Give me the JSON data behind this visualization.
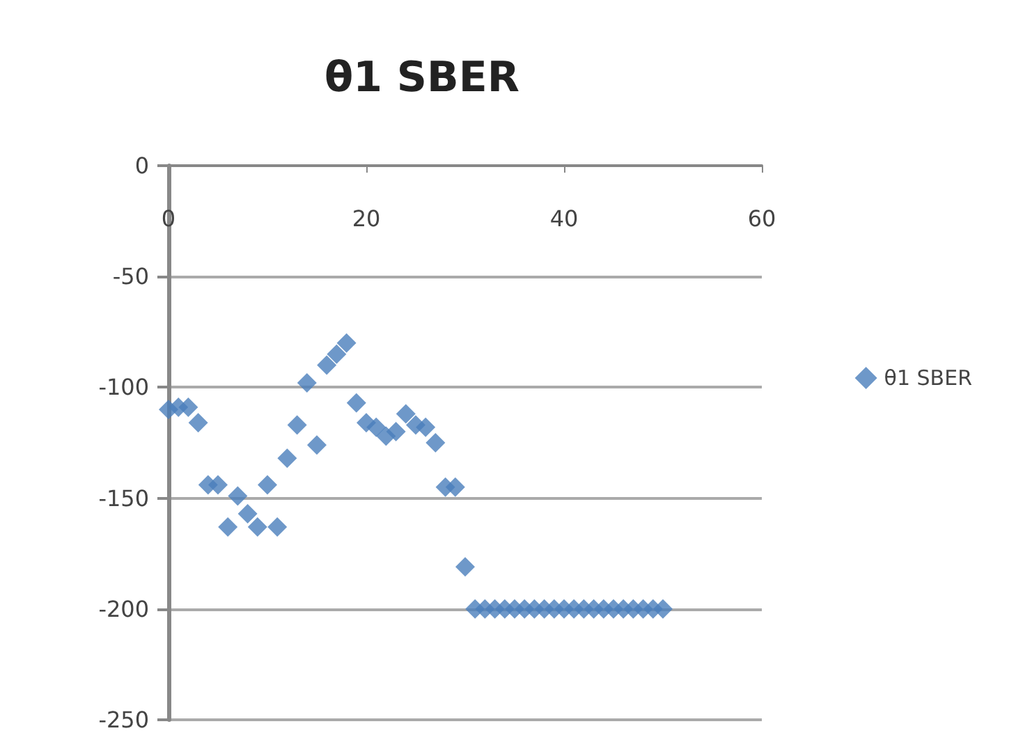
{
  "chart_data": {
    "type": "scatter",
    "title": "θ1 SBER",
    "x": [
      0,
      1,
      2,
      3,
      4,
      5,
      6,
      7,
      8,
      9,
      10,
      11,
      12,
      13,
      14,
      15,
      16,
      17,
      18,
      19,
      20,
      21,
      22,
      23,
      24,
      25,
      26,
      27,
      28,
      29,
      30,
      31,
      32,
      33,
      34,
      35,
      36,
      37,
      38,
      39,
      40,
      41,
      42,
      43,
      44,
      45,
      46,
      47,
      48,
      49,
      50
    ],
    "series": [
      {
        "name": "θ1 SBER",
        "color": "#4a7ebb",
        "values": [
          -110,
          -109,
          -109,
          -116,
          -144,
          -144,
          -163,
          -149,
          -157,
          -163,
          -144,
          -163,
          -132,
          -117,
          -98,
          -126,
          -90,
          -85,
          -80,
          -107,
          -116,
          -118,
          -122,
          -120,
          -112,
          -117,
          -118,
          -125,
          -145,
          -145,
          -181,
          -200,
          -200,
          -200,
          -200,
          -200,
          -200,
          -200,
          -200,
          -200,
          -200,
          -200,
          -200,
          -200,
          -200,
          -200,
          -200,
          -200,
          -200,
          -200,
          -200
        ]
      }
    ],
    "xlim": [
      0,
      60
    ],
    "xticks": [
      0,
      20,
      40,
      60
    ],
    "ylim": [
      -250,
      0
    ],
    "yticks": [
      -250,
      -200,
      -150,
      -100,
      -50,
      0
    ],
    "grid": "y",
    "legend": "right",
    "marker": "diamond"
  }
}
